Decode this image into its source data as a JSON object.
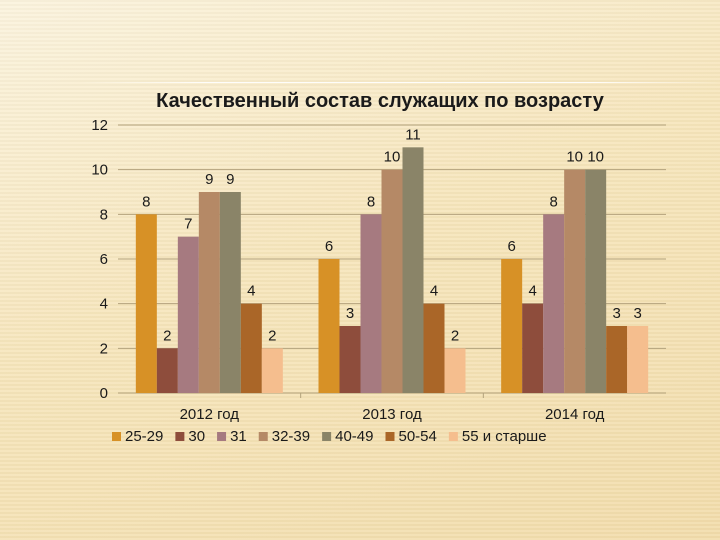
{
  "chart_data": {
    "type": "bar",
    "title": "Качественный состав служащих по возрасту",
    "categories": [
      "2012 год",
      "2013 год",
      "2014 год"
    ],
    "ylim": [
      0,
      12
    ],
    "yticks": [
      0,
      2,
      4,
      6,
      8,
      10,
      12
    ],
    "grid": true,
    "legend_position": "bottom",
    "series": [
      {
        "name": "25-29",
        "color": "#d79126",
        "values": [
          8,
          6,
          6
        ],
        "labels": [
          "8",
          "6",
          "6"
        ]
      },
      {
        "name": "30",
        "color": "#8e4d3c",
        "values": [
          2,
          3,
          4
        ],
        "labels": [
          "2",
          "3",
          "4"
        ]
      },
      {
        "name": "31",
        "color": "#a67a80",
        "values": [
          7,
          8,
          8
        ],
        "labels": [
          "7",
          "8",
          "8"
        ]
      },
      {
        "name": "32-39",
        "color": "#b58966",
        "values": [
          9,
          10,
          10
        ],
        "labels": [
          "9",
          "10",
          "10"
        ]
      },
      {
        "name": "40-49",
        "color": "#8a8468",
        "values": [
          9,
          11,
          10
        ],
        "labels": [
          "9",
          "11",
          "10"
        ]
      },
      {
        "name": "50-54",
        "color": "#aa6628",
        "values": [
          4,
          4,
          3
        ],
        "labels": [
          "4",
          "4",
          "3"
        ]
      },
      {
        "name": "55 и старше",
        "color": "#f5be8e",
        "values": [
          2,
          2,
          3
        ],
        "labels": [
          "2",
          "2",
          "3"
        ]
      }
    ]
  }
}
